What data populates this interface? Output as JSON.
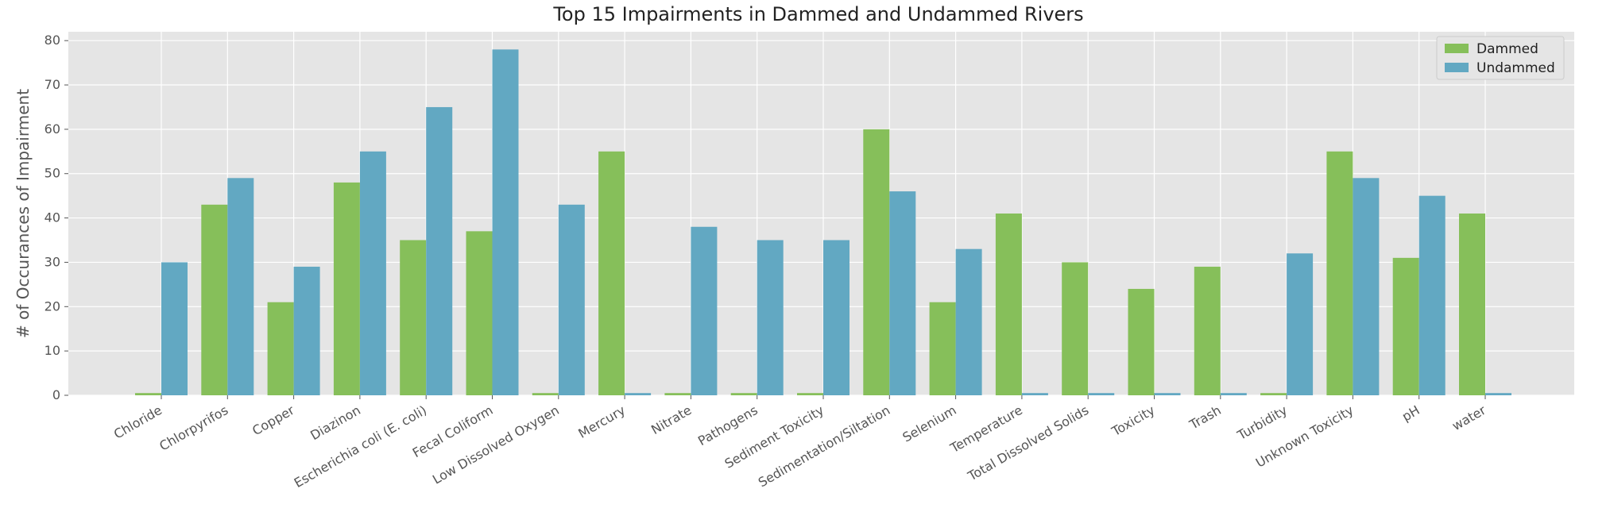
{
  "chart_data": {
    "type": "bar",
    "title": "Top 15 Impairments in Dammed and Undammed Rivers",
    "xlabel": "",
    "ylabel": "# of Occurances of Impairment",
    "ylim": [
      0,
      82
    ],
    "yticks": [
      0,
      10,
      20,
      30,
      40,
      50,
      60,
      70,
      80
    ],
    "grid": true,
    "legend_position": "top-right",
    "categories": [
      "Chloride",
      "Chlorpyrifos",
      "Copper",
      "Diazinon",
      "Escherichia coli (E. coli)",
      "Fecal Coliform",
      "Low Dissolved Oxygen",
      "Mercury",
      "Nitrate",
      "Pathogens",
      "Sediment Toxicity",
      "Sedimentation/Siltation",
      "Selenium",
      "Temperature",
      "Total Dissolved Solids",
      "Toxicity",
      "Trash",
      "Turbidity",
      "Unknown Toxicity",
      "pH",
      "water"
    ],
    "series": [
      {
        "name": "Dammed",
        "color": "#86bf5a",
        "values": [
          0.5,
          43,
          21,
          48,
          35,
          37,
          0.5,
          55,
          0.5,
          0.5,
          0.5,
          60,
          21,
          41,
          30,
          24,
          29,
          0.5,
          55,
          31,
          41
        ]
      },
      {
        "name": "Undammed",
        "color": "#62a8c2",
        "values": [
          30,
          49,
          29,
          55,
          65,
          78,
          43,
          0.5,
          38,
          35,
          35,
          46,
          33,
          0.5,
          0.5,
          0.5,
          0.5,
          32,
          49,
          45,
          0.5
        ]
      }
    ]
  }
}
